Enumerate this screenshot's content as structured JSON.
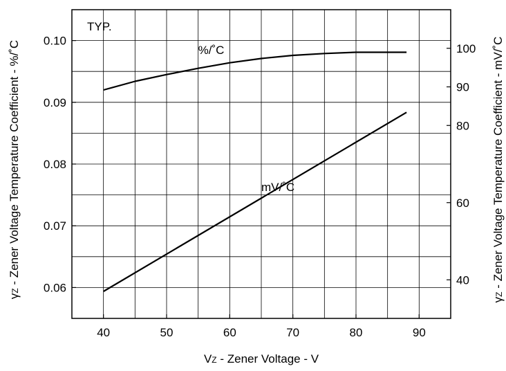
{
  "chart_data": {
    "type": "line",
    "title": "",
    "annotations": {
      "condition": "TYP."
    },
    "xlabel": {
      "symbol": "V",
      "subscript": "Z",
      "text": " - Zener Voltage - V"
    },
    "ylabel_left": {
      "symbol": "γ",
      "subscript": "Z",
      "text": " - Zener Voltage Temperature Coefficient - %/˚C"
    },
    "ylabel_right": {
      "symbol": "γ",
      "subscript": "Z",
      "text": " - Zener Voltage Temperature Coefficient - mV/˚C"
    },
    "xlim": [
      35,
      95
    ],
    "ylim_left": [
      0.055,
      0.105
    ],
    "ylim_right": [
      30,
      110
    ],
    "x_ticks": [
      "40",
      "50",
      "60",
      "70",
      "80",
      "90"
    ],
    "y_ticks_left": [
      "0.06",
      "0.07",
      "0.08",
      "0.09",
      "0.10"
    ],
    "y_ticks_right": [
      "40",
      "60",
      "80",
      "90",
      "100"
    ],
    "grid": true,
    "series": [
      {
        "name": "%/˚C",
        "axis": "left",
        "x": [
          40,
          45,
          50,
          55,
          60,
          65,
          70,
          75,
          80,
          85,
          88
        ],
        "y": [
          0.092,
          0.0934,
          0.0945,
          0.0955,
          0.0964,
          0.0971,
          0.0976,
          0.0979,
          0.0981,
          0.0981,
          0.0981
        ],
        "label_position": [
          55,
          0.0978
        ]
      },
      {
        "name": "mV/˚C",
        "axis": "right",
        "x": [
          40,
          88
        ],
        "y": [
          37,
          83.4
        ],
        "label_position": [
          65,
          63
        ]
      }
    ]
  }
}
